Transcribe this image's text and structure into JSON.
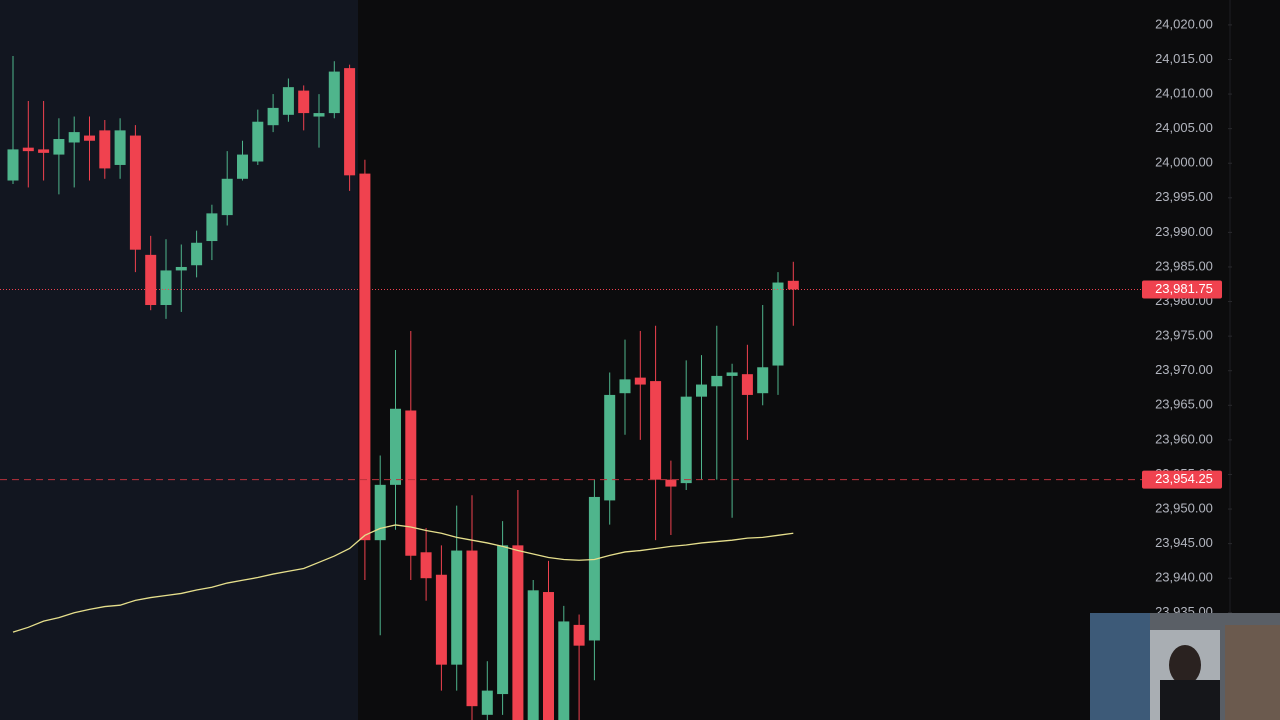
{
  "chart_data": {
    "type": "candlestick",
    "up_color": "#4fb58c",
    "down_color": "#f0424f",
    "ylim": [
      23919.5,
      24023.6
    ],
    "yticks": [
      {
        "value": 24020,
        "label": "24,020.00"
      },
      {
        "value": 24015,
        "label": "24,015.00"
      },
      {
        "value": 24010,
        "label": "24,010.00"
      },
      {
        "value": 24005,
        "label": "24,005.00"
      },
      {
        "value": 24000,
        "label": "24,000.00"
      },
      {
        "value": 23995,
        "label": "23,995.00"
      },
      {
        "value": 23990,
        "label": "23,990.00"
      },
      {
        "value": 23985,
        "label": "23,985.00"
      },
      {
        "value": 23980,
        "label": "23,980.00"
      },
      {
        "value": 23975,
        "label": "23,975.00"
      },
      {
        "value": 23970,
        "label": "23,970.00"
      },
      {
        "value": 23965,
        "label": "23,965.00"
      },
      {
        "value": 23960,
        "label": "23,960.00"
      },
      {
        "value": 23955,
        "label": "23,955.00"
      },
      {
        "value": 23950,
        "label": "23,950.00"
      },
      {
        "value": 23945,
        "label": "23,945.00"
      },
      {
        "value": 23940,
        "label": "23,940.00"
      },
      {
        "value": 23935,
        "label": "23,935.00"
      }
    ],
    "open": [
      23997.5,
      24002.25,
      24002,
      24001.25,
      24003,
      24004,
      24004.75,
      23999.75,
      24004,
      23986.75,
      23979.5,
      23984.5,
      23985.25,
      23988.75,
      23992.5,
      23997.75,
      24000.25,
      24005.5,
      24007,
      24010.5,
      24006.75,
      24007.25,
      24013.75,
      23998.5,
      23945.5,
      23953.5,
      23964.25,
      23943.75,
      23940.5,
      23927.5,
      23944,
      23920.25,
      23923.25,
      23944.75,
      23919.5,
      23938,
      23919.5,
      23933.25,
      23931,
      23951.25,
      23966.75,
      23969,
      23968.5,
      23954.25,
      23953.75,
      23966.25,
      23967.75,
      23969.25,
      23969.5,
      23966.75,
      23970.75,
      23983
    ],
    "high": [
      24015.5,
      24009,
      24009,
      24006.5,
      24006.75,
      24006.75,
      24006.25,
      24006.5,
      24005.5,
      23989.5,
      23989,
      23988.25,
      23990.25,
      23994,
      24001.75,
      24003.25,
      24007.75,
      24010,
      24012.25,
      24011.25,
      24010,
      24014.75,
      24014.25,
      24000.5,
      23957.75,
      23973,
      23975.75,
      23947.25,
      23944.75,
      23950.5,
      23952,
      23928,
      23948.25,
      23952.75,
      23939.75,
      23942.5,
      23936,
      23934.75,
      23954.25,
      23969.75,
      23974.5,
      23975.75,
      23976.5,
      23957,
      23971.5,
      23972.25,
      23976.5,
      23971,
      23973.75,
      23979.5,
      23984.25,
      23985.75
    ],
    "low": [
      23997,
      23996.5,
      23997.5,
      23995.5,
      23996.5,
      23997.5,
      23997.75,
      23997.75,
      23984.25,
      23978.75,
      23977.5,
      23978.5,
      23983.5,
      23986,
      23991,
      23997.5,
      23999.75,
      24004.5,
      24006,
      24004.75,
      24002.25,
      24006.5,
      23996,
      23939.75,
      23931.75,
      23947,
      23939.75,
      23936.75,
      23923.75,
      23923.75,
      23919.5,
      23919.5,
      23920.25,
      23919.5,
      23919.5,
      23919.5,
      23919.5,
      23919.5,
      23925.25,
      23947.75,
      23960.75,
      23960,
      23945.5,
      23946.25,
      23952.75,
      23954.25,
      23954.25,
      23948.75,
      23960,
      23965,
      23966.5,
      23976.5
    ],
    "close": [
      24002,
      24001.75,
      24001.5,
      24003.5,
      24004.5,
      24003.25,
      23999.25,
      24004.75,
      23987.5,
      23979.5,
      23984.5,
      23985,
      23988.5,
      23992.75,
      23997.75,
      24001.25,
      24006,
      24008,
      24011,
      24007.25,
      24007.25,
      24013.25,
      23998.25,
      23945.5,
      23953.5,
      23964.5,
      23943.25,
      23940,
      23927.5,
      23944,
      23921.5,
      23923.75,
      23944.75,
      23919.5,
      23938.25,
      23919.5,
      23933.75,
      23930.25,
      23951.75,
      23966.5,
      23968.75,
      23968,
      23954.25,
      23953.25,
      23966.25,
      23968,
      23969.25,
      23969.75,
      23966.5,
      23970.5,
      23982.75,
      23981.75
    ],
    "moving_average": {
      "color": "#e6df8c",
      "values": [
        23932.2,
        23932.9,
        23933.8,
        23934.3,
        23935,
        23935.5,
        23935.9,
        23936.1,
        23936.8,
        23937.2,
        23937.5,
        23937.8,
        23938.3,
        23938.7,
        23939.3,
        23939.7,
        23940.1,
        23940.6,
        23941,
        23941.4,
        23942.3,
        23943.2,
        23944.3,
        23946.2,
        23947.2,
        23947.7,
        23947.4,
        23946.9,
        23946.5,
        23945.9,
        23945.5,
        23945.1,
        23944.6,
        23944,
        23943.5,
        23943,
        23942.7,
        23942.6,
        23942.7,
        23943.3,
        23943.8,
        23944,
        23944.3,
        23944.6,
        23944.8,
        23945.1,
        23945.3,
        23945.5,
        23945.8,
        23945.9,
        23946.2,
        23946.5
      ]
    },
    "price_lines": [
      {
        "value": 23981.75,
        "label": "23,981.75",
        "style": "dotted",
        "color": "#f0424f"
      },
      {
        "value": 23954.25,
        "label": "23,954.25",
        "style": "dashed",
        "color": "#b8323c"
      }
    ]
  }
}
